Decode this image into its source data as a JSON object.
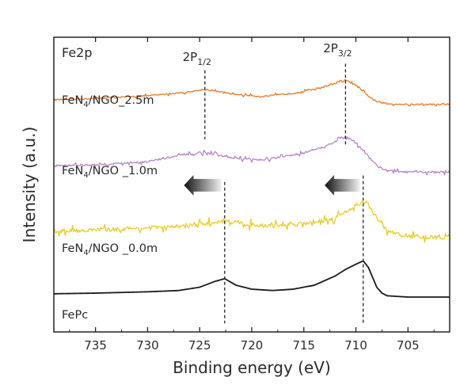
{
  "chart_data": {
    "type": "line",
    "panel_label": "Fe2p",
    "xlabel": "Binding energy (eV)",
    "ylabel": "Intensity (a.u.)",
    "xlim": [
      739,
      701
    ],
    "x_reversed": true,
    "x_ticks": [
      735,
      730,
      725,
      720,
      715,
      710,
      705
    ],
    "y_ticks_shown": false,
    "stacked_offsets": true,
    "peak_labels": [
      {
        "base": "2P",
        "sub": "1/2",
        "x": 724.5
      },
      {
        "base": "2P",
        "sub": "3/2",
        "x": 711.0
      }
    ],
    "series": [
      {
        "name": "FeN4/NGO_2.5m",
        "label_main": "FeN",
        "label_sub": "4",
        "label_rest": "/NGO_2.5m",
        "color": "#e87722",
        "offset": 3.0,
        "noise": 0.01,
        "x": [
          739,
          735,
          730,
          726,
          724.5,
          722,
          719,
          716,
          713,
          711.5,
          711,
          710,
          709,
          708,
          707,
          705,
          701
        ],
        "values": [
          0.0,
          0.02,
          0.06,
          0.12,
          0.16,
          0.09,
          0.05,
          0.1,
          0.2,
          0.28,
          0.3,
          0.22,
          0.08,
          -0.03,
          -0.06,
          -0.07,
          -0.07
        ]
      },
      {
        "name": "FeN4/NGO _1.0m",
        "label_main": "FeN",
        "label_sub": "4",
        "label_rest": "/NGO _1.0m",
        "color": "#b485c8",
        "offset": 2.0,
        "noise": 0.015,
        "x": [
          739,
          735,
          730,
          727,
          724.5,
          722,
          719,
          716,
          713,
          711.5,
          711,
          710,
          709,
          708,
          707,
          705,
          701
        ],
        "values": [
          0.0,
          0.01,
          0.06,
          0.15,
          0.2,
          0.12,
          0.08,
          0.16,
          0.28,
          0.42,
          0.45,
          0.35,
          0.18,
          0.0,
          -0.08,
          -0.1,
          -0.1
        ]
      },
      {
        "name": "FeN4/NGO _0.0m",
        "label_main": "FeN",
        "label_sub": "4",
        "label_rest": "/NGO _0.0m",
        "color": "#e8cc2e",
        "offset": 1.0,
        "noise": 0.03,
        "x": [
          739,
          735,
          730,
          726,
          722.5,
          720,
          718,
          715,
          712,
          710,
          709,
          708,
          707,
          705,
          701
        ],
        "values": [
          0.0,
          0.02,
          0.05,
          0.08,
          0.16,
          0.1,
          0.08,
          0.12,
          0.2,
          0.4,
          0.45,
          0.2,
          0.0,
          -0.08,
          -0.1
        ]
      },
      {
        "name": "FePc",
        "label_main": "FePc",
        "label_sub": "",
        "label_rest": "",
        "color": "#1a1a1a",
        "offset": 0.0,
        "noise": 0.0,
        "x": [
          739,
          735,
          730,
          727,
          725,
          723.5,
          722.6,
          721.5,
          720,
          718,
          716,
          714,
          712,
          711,
          710,
          709.3,
          708.8,
          708,
          707.5,
          707,
          705,
          701
        ],
        "values": [
          0.05,
          0.06,
          0.08,
          0.1,
          0.15,
          0.24,
          0.28,
          0.18,
          0.12,
          0.1,
          0.12,
          0.18,
          0.32,
          0.42,
          0.5,
          0.55,
          0.45,
          0.15,
          0.06,
          0.02,
          0.0,
          0.0
        ]
      }
    ],
    "reference_lines": [
      {
        "x": 724.5,
        "y_top": 3.45,
        "y_bottom": 2.4
      },
      {
        "x": 711.0,
        "y_top": 3.55,
        "y_bottom": 2.3
      },
      {
        "x": 722.6,
        "y_top": 1.75,
        "y_bottom": -0.4
      },
      {
        "x": 709.3,
        "y_top": 1.85,
        "y_bottom": -0.4
      }
    ],
    "shift_arrows": [
      {
        "x_from": 722.6,
        "x_to": 726.5,
        "y": 1.7
      },
      {
        "x_from": 709.3,
        "x_to": 713.0,
        "y": 1.7
      }
    ]
  }
}
